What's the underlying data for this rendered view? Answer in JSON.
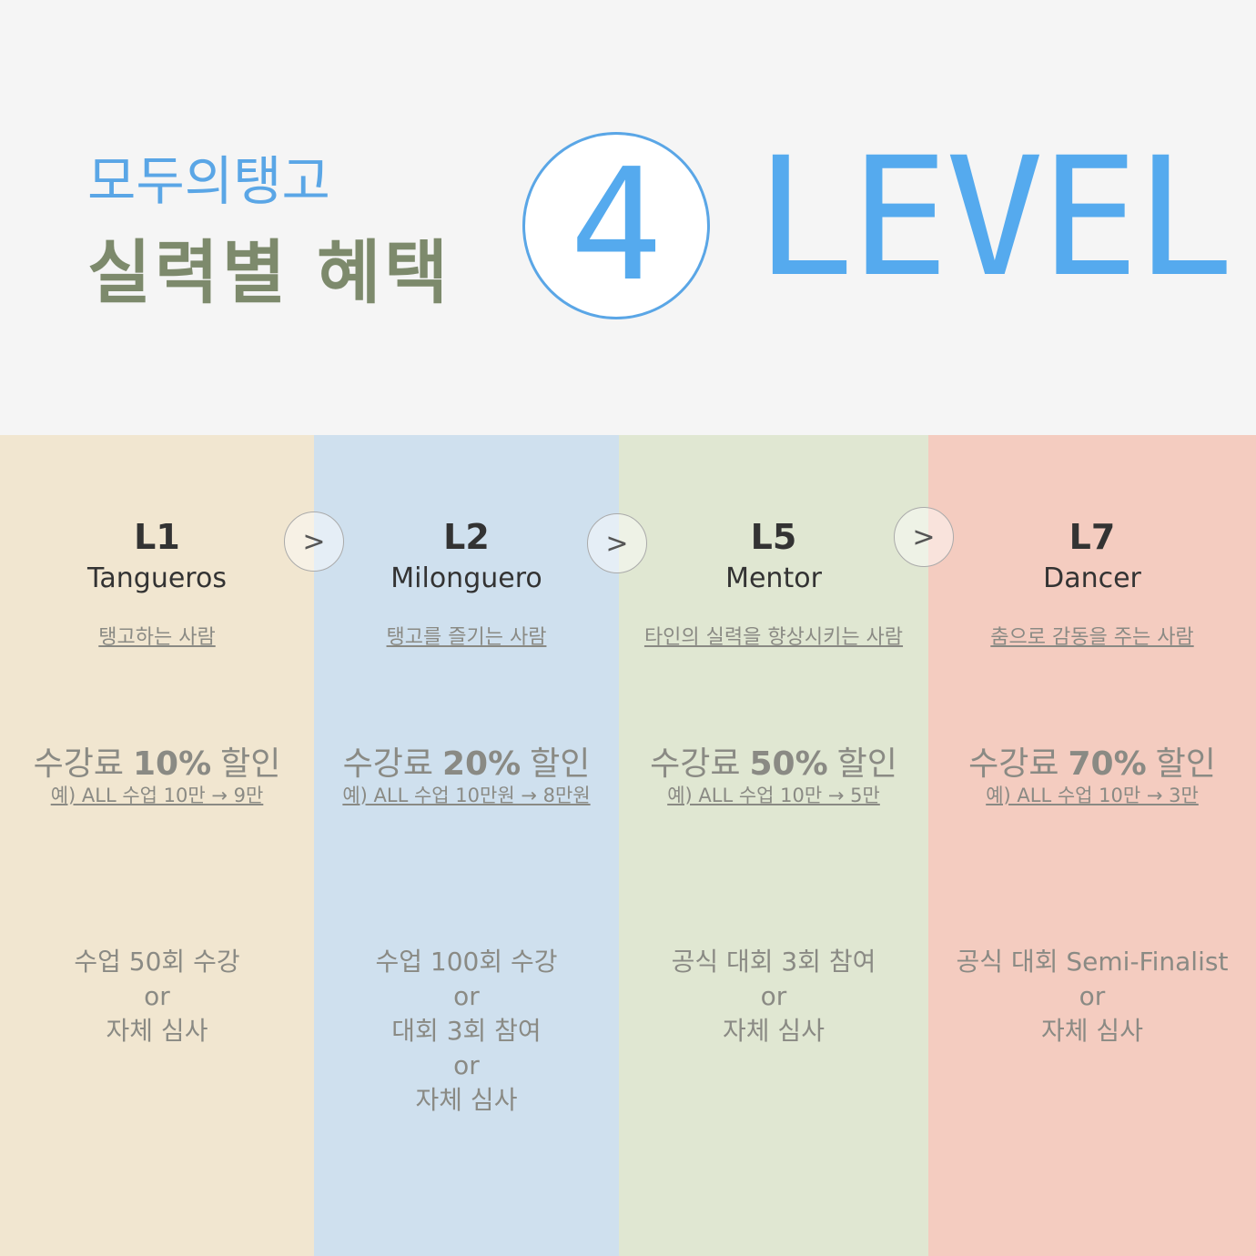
{
  "header": {
    "brand": "모두의탱고",
    "title": "실력별 혜택",
    "badge": "4",
    "word": "LEVEL"
  },
  "arrows": [
    ">",
    ">",
    ">"
  ],
  "columns": [
    {
      "level": "L1",
      "name": "Tangueros",
      "desc": "탱고하는 사람",
      "discount": {
        "prefix": "수강료",
        "amount": "10%",
        "suffix": "할인"
      },
      "example": "예) ALL 수업 10만 → 9만",
      "requirements": [
        "수업 50회 수강",
        "or",
        "자체 심사"
      ]
    },
    {
      "level": "L2",
      "name": "Milonguero",
      "desc": "탱고를 즐기는 사람",
      "discount": {
        "prefix": "수강료",
        "amount": "20%",
        "suffix": "할인"
      },
      "example": "예) ALL 수업 10만원 → 8만원",
      "requirements": [
        "수업 100회 수강",
        "or",
        "대회 3회 참여",
        "or",
        "자체 심사"
      ]
    },
    {
      "level": "L5",
      "name": "Mentor",
      "desc": "타인의 실력을 향상시키는 사람",
      "discount": {
        "prefix": "수강료",
        "amount": "50%",
        "suffix": "할인"
      },
      "example": "예) ALL 수업 10만 → 5만",
      "requirements": [
        "공식 대회 3회 참여",
        "or",
        "자체 심사"
      ]
    },
    {
      "level": "L7",
      "name": "Dancer",
      "desc": "춤으로 감동을 주는 사람",
      "discount": {
        "prefix": "수강료",
        "amount": "70%",
        "suffix": "할인"
      },
      "example": "예) ALL 수업 10만 → 3만",
      "requirements": [
        "공식 대회 Semi-Finalist",
        "or",
        "자체 심사"
      ]
    }
  ]
}
